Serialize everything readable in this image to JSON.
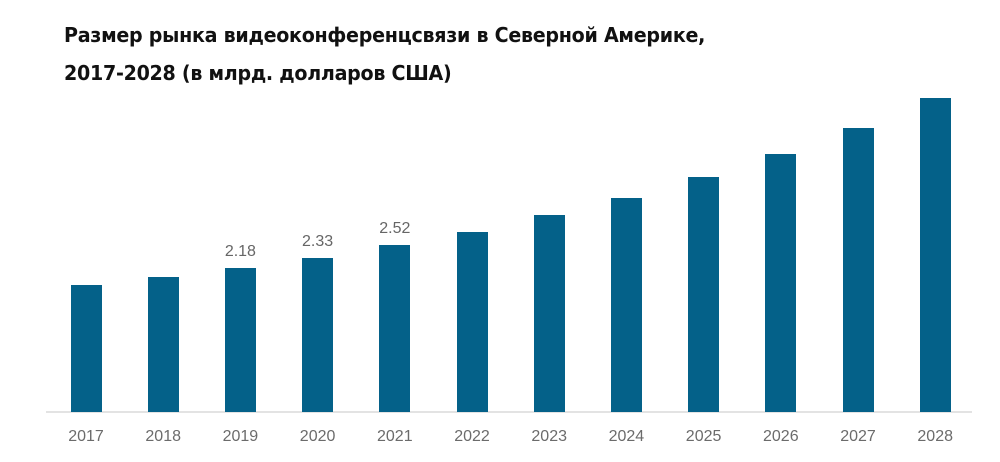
{
  "title": {
    "line1": "Размер рынка видеоконференцсвязи в Северной Америке,",
    "line2": "2017-2028 (в млрд. долларов США)"
  },
  "colors": {
    "bar": "#046189",
    "axis": "#e3e3e3",
    "label": "#666666"
  },
  "chart_data": {
    "type": "bar",
    "title": "Размер рынка видеоконференцсвязи в Северной Америке, 2017-2028 (в млрд. долларов США)",
    "xlabel": "",
    "ylabel": "",
    "categories": [
      "2017",
      "2018",
      "2019",
      "2020",
      "2021",
      "2022",
      "2023",
      "2024",
      "2025",
      "2026",
      "2027",
      "2028"
    ],
    "values": [
      1.92,
      2.04,
      2.18,
      2.33,
      2.52,
      2.72,
      2.98,
      3.23,
      3.55,
      3.9,
      4.29,
      4.74
    ],
    "data_labels": {
      "2019": "2.18",
      "2020": "2.33",
      "2021": "2.52"
    },
    "grid": false,
    "legend": "none",
    "ylim": [
      0,
      4.9
    ]
  },
  "labels": {
    "y2019": "2.18",
    "y2020": "2.33",
    "y2021": "2.52"
  }
}
